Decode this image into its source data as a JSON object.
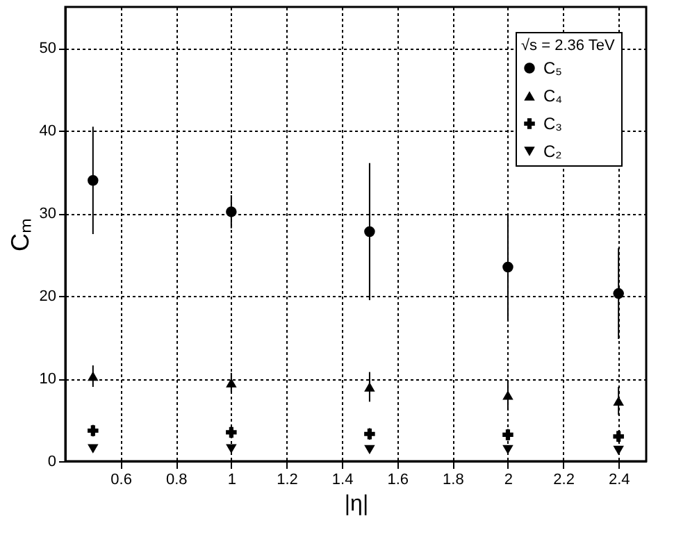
{
  "chart_data": {
    "type": "scatter",
    "xlabel": "|η|",
    "ylabel": "Cₘ",
    "legend_title": "√s = 2.36 TeV",
    "legend": "top right",
    "grid": true,
    "x": [
      0.5,
      1,
      1.5,
      2,
      2.4
    ],
    "xlim": [
      0.4,
      2.5
    ],
    "xticks": [
      0.6,
      0.8,
      1,
      1.2,
      1.4,
      1.6,
      1.8,
      2,
      2.2,
      2.4
    ],
    "ylim": [
      0,
      55
    ],
    "yticks": [
      0,
      10,
      20,
      30,
      40,
      50
    ],
    "series": [
      {
        "name": "C₅",
        "color": "#000000",
        "marker": "circle",
        "values": [
          34,
          30.2,
          27.8,
          23.5,
          20.3
        ],
        "errors": [
          6.5,
          2,
          8.3,
          6.3,
          5.5
        ]
      },
      {
        "name": "C₄",
        "color": "#000000",
        "marker": "triangle",
        "values": [
          10.3,
          9.5,
          9,
          8,
          7.3
        ],
        "errors": [
          1.3,
          1.2,
          1.8,
          1.8,
          1.7
        ]
      },
      {
        "name": "C₃",
        "color": "#000000",
        "marker": "cross",
        "values": [
          3.7,
          3.5,
          3.3,
          3.2,
          3.0
        ],
        "errors": [
          0.7,
          0.7,
          0.7,
          0.7,
          0.7
        ]
      },
      {
        "name": "C₂",
        "color": "#000000",
        "marker": "triangle-down",
        "values": [
          1.5,
          1.5,
          1.4,
          1.4,
          1.3
        ],
        "errors": [
          0.4,
          0.4,
          0.4,
          0.4,
          0.4
        ]
      }
    ]
  }
}
